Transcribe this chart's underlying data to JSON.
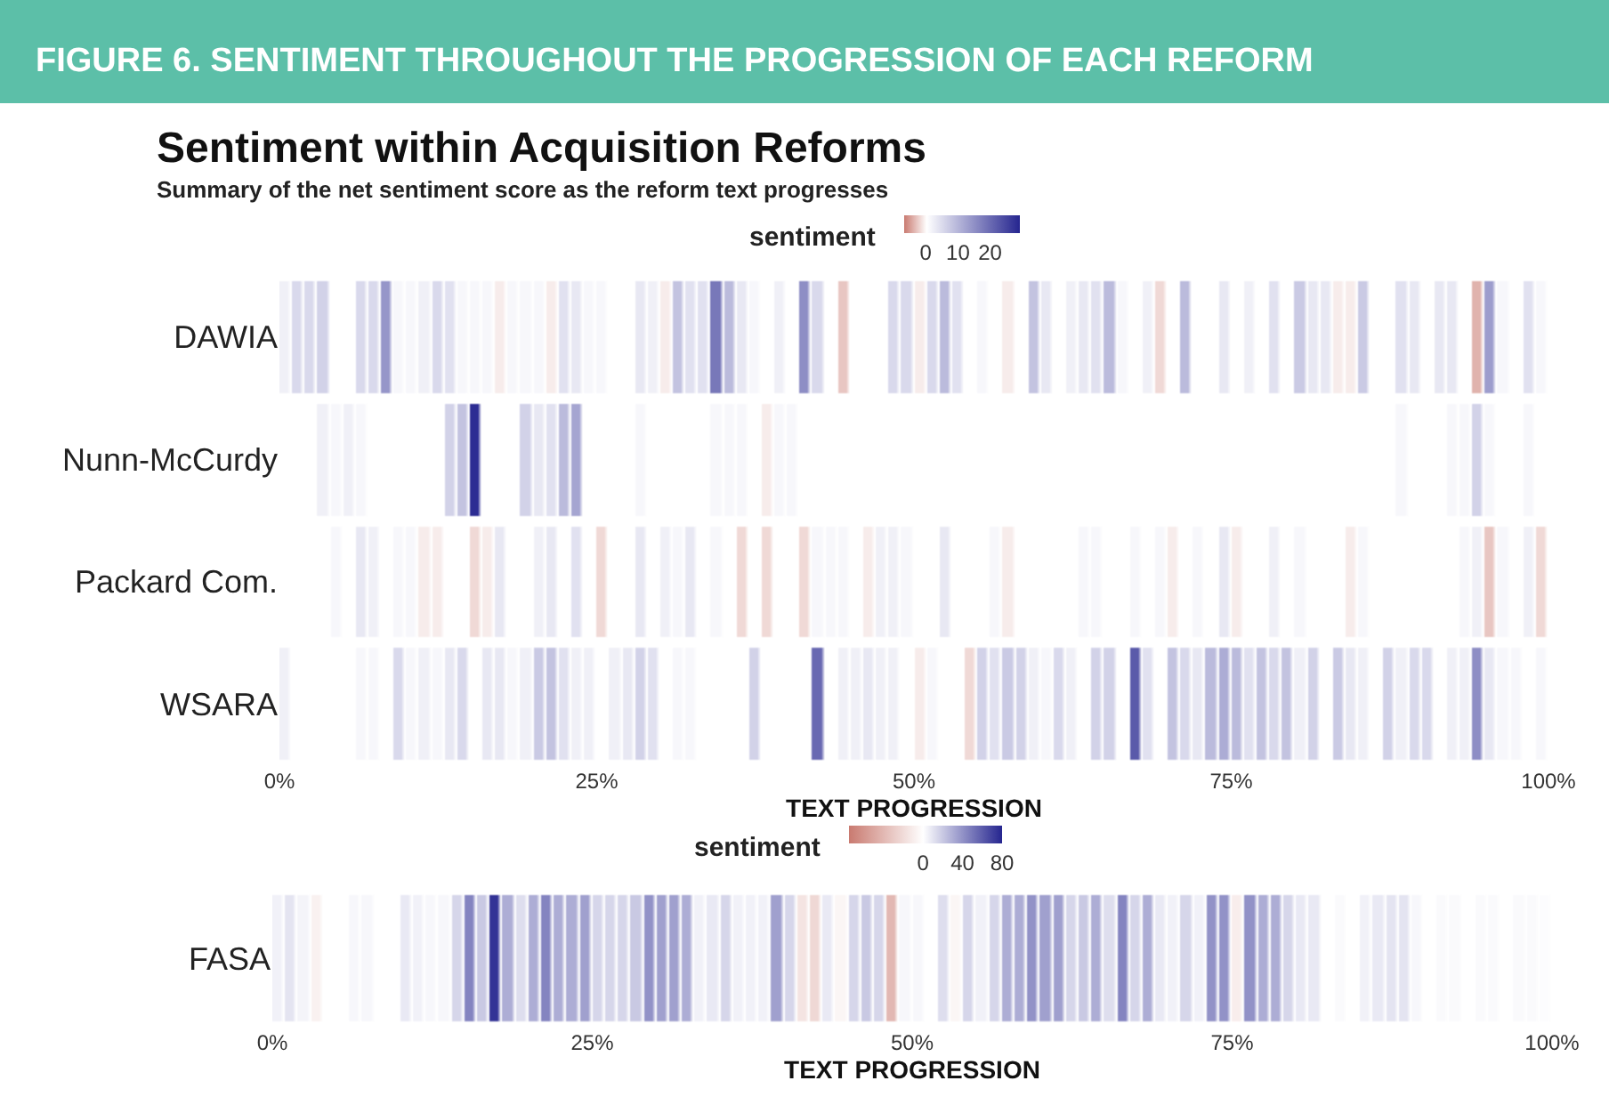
{
  "chart_data": [
    {
      "type": "heatmap",
      "title": "Sentiment within Acquisition Reforms",
      "subtitle": "Summary of the net sentiment score as the reform text progresses",
      "annotations": [
        "FIGURE 6. SENTIMENT THROUGHOUT THE PROGRESSION OF EACH REFORM"
      ],
      "xlabel": "TEXT PROGRESSION",
      "clabel": "sentiment",
      "clim": [
        -7,
        29
      ],
      "cticks": [
        0,
        10,
        20
      ],
      "xlim": [
        0,
        100
      ],
      "xticks": [
        {
          "value": 0,
          "label": "0%"
        },
        {
          "value": 25,
          "label": "25%"
        },
        {
          "value": 50,
          "label": "50%"
        },
        {
          "value": 75,
          "label": "75%"
        },
        {
          "value": 100,
          "label": "100%"
        }
      ],
      "x": [
        0.5,
        1.5,
        2.5,
        3.5,
        4.5,
        5.5,
        6.5,
        7.5,
        8.5,
        9.5,
        10.5,
        11.5,
        12.5,
        13.5,
        14.5,
        15.5,
        16.5,
        17.5,
        18.5,
        19.5,
        20.5,
        21.5,
        22.5,
        23.5,
        24.5,
        25.5,
        26.5,
        27.5,
        28.5,
        29.5,
        30.5,
        31.5,
        32.5,
        33.5,
        34.5,
        35.5,
        36.5,
        37.5,
        38.5,
        39.5,
        40.5,
        41.5,
        42.5,
        43.5,
        44.5,
        45.5,
        46.5,
        47.5,
        48.5,
        49.5,
        50.5,
        51.5,
        52.5,
        53.5,
        54.5,
        55.5,
        56.5,
        57.5,
        58.5,
        59.5,
        60.5,
        61.5,
        62.5,
        63.5,
        64.5,
        65.5,
        66.5,
        67.5,
        68.5,
        69.5,
        70.5,
        71.5,
        72.5,
        73.5,
        74.5,
        75.5,
        76.5,
        77.5,
        78.5,
        79.5,
        80.5,
        81.5,
        82.5,
        83.5,
        84.5,
        85.5,
        86.5,
        87.5,
        88.5,
        89.5,
        90.5,
        91.5,
        92.5,
        93.5,
        94.5,
        95.5,
        96.5,
        97.5,
        98.5,
        99.5
      ],
      "y_categories": [
        "DAWIA",
        "Nunn-McCurdy",
        "Packard Com.",
        "WSARA"
      ],
      "cells": [
        [
          2,
          5,
          5,
          6,
          null,
          null,
          5,
          5,
          14,
          1,
          1,
          2,
          5,
          4,
          1,
          1,
          1,
          -1,
          1,
          1,
          1,
          -1,
          4,
          3,
          1,
          1,
          null,
          null,
          3,
          2,
          -1,
          8,
          4,
          4,
          18,
          9,
          3,
          1,
          null,
          2,
          null,
          15,
          5,
          null,
          -3,
          null,
          null,
          null,
          5,
          5,
          -1,
          5,
          9,
          4,
          null,
          1,
          null,
          -1,
          null,
          8,
          3,
          null,
          2,
          3,
          4,
          9,
          1,
          null,
          2,
          -2,
          null,
          9,
          null,
          null,
          3,
          null,
          2,
          null,
          4,
          null,
          7,
          3,
          3,
          -1,
          -1,
          7,
          null,
          null,
          4,
          3,
          null,
          3,
          3,
          null,
          -4,
          13,
          1,
          null,
          4,
          1
        ],
        [
          null,
          null,
          null,
          2,
          1,
          2,
          1,
          null,
          null,
          null,
          null,
          0,
          null,
          6,
          8,
          28,
          null,
          null,
          null,
          6,
          3,
          4,
          9,
          12,
          null,
          null,
          null,
          null,
          1,
          null,
          null,
          null,
          null,
          null,
          1,
          1,
          1,
          null,
          -1,
          1,
          1,
          null,
          null,
          null,
          null,
          null,
          null,
          null,
          null,
          null,
          null,
          null,
          null,
          null,
          null,
          null,
          null,
          null,
          null,
          null,
          null,
          null,
          null,
          null,
          null,
          null,
          null,
          null,
          null,
          null,
          null,
          null,
          null,
          null,
          null,
          null,
          null,
          null,
          null,
          null,
          null,
          null,
          null,
          null,
          null,
          null,
          null,
          null,
          1,
          null,
          null,
          null,
          1,
          1,
          6,
          1,
          null,
          null,
          1,
          null
        ],
        [
          null,
          null,
          null,
          null,
          1,
          null,
          3,
          2,
          null,
          1,
          1,
          -1,
          -1,
          null,
          null,
          -2,
          -1,
          3,
          null,
          null,
          2,
          3,
          null,
          4,
          null,
          -2,
          null,
          null,
          3,
          null,
          2,
          1,
          3,
          null,
          1,
          null,
          -2,
          null,
          -2,
          null,
          null,
          -2,
          1,
          1,
          1,
          null,
          -1,
          2,
          2,
          1,
          null,
          null,
          3,
          null,
          null,
          null,
          1,
          -1,
          null,
          null,
          null,
          null,
          null,
          1,
          1,
          null,
          null,
          1,
          null,
          1,
          -1,
          null,
          1,
          null,
          3,
          -1,
          null,
          null,
          2,
          null,
          1,
          null,
          null,
          null,
          -1,
          1,
          null,
          null,
          null,
          null,
          null,
          null,
          null,
          1,
          2,
          -3,
          1,
          null,
          2,
          -2
        ],
        [
          2,
          null,
          null,
          null,
          null,
          null,
          1,
          1,
          null,
          5,
          1,
          2,
          1,
          3,
          5,
          null,
          3,
          3,
          1,
          2,
          7,
          8,
          4,
          2,
          2,
          null,
          2,
          3,
          6,
          4,
          null,
          1,
          1,
          null,
          null,
          null,
          null,
          6,
          null,
          null,
          null,
          null,
          20,
          null,
          2,
          2,
          3,
          2,
          2,
          null,
          -1,
          1,
          null,
          null,
          -2,
          6,
          4,
          7,
          6,
          2,
          1,
          5,
          2,
          null,
          6,
          6,
          null,
          22,
          4,
          null,
          8,
          5,
          3,
          9,
          11,
          9,
          4,
          8,
          5,
          8,
          2,
          6,
          null,
          7,
          3,
          2,
          null,
          6,
          2,
          5,
          5,
          null,
          2,
          2,
          15,
          3,
          1,
          1,
          null,
          1
        ]
      ]
    },
    {
      "type": "heatmap",
      "xlabel": "TEXT PROGRESSION",
      "clabel": "sentiment",
      "clim": [
        -75,
        80
      ],
      "cticks": [
        0,
        40,
        80
      ],
      "xlim": [
        0,
        100
      ],
      "xticks": [
        {
          "value": 0,
          "label": "0%"
        },
        {
          "value": 25,
          "label": "25%"
        },
        {
          "value": 50,
          "label": "50%"
        },
        {
          "value": 75,
          "label": "75%"
        },
        {
          "value": 100,
          "label": "100%"
        }
      ],
      "x": [
        0.5,
        1.5,
        2.5,
        3.5,
        4.5,
        5.5,
        6.5,
        7.5,
        8.5,
        9.5,
        10.5,
        11.5,
        12.5,
        13.5,
        14.5,
        15.5,
        16.5,
        17.5,
        18.5,
        19.5,
        20.5,
        21.5,
        22.5,
        23.5,
        24.5,
        25.5,
        26.5,
        27.5,
        28.5,
        29.5,
        30.5,
        31.5,
        32.5,
        33.5,
        34.5,
        35.5,
        36.5,
        37.5,
        38.5,
        39.5,
        40.5,
        41.5,
        42.5,
        43.5,
        44.5,
        45.5,
        46.5,
        47.5,
        48.5,
        49.5,
        50.5,
        51.5,
        52.5,
        53.5,
        54.5,
        55.5,
        56.5,
        57.5,
        58.5,
        59.5,
        60.5,
        61.5,
        62.5,
        63.5,
        64.5,
        65.5,
        66.5,
        67.5,
        68.5,
        69.5,
        70.5,
        71.5,
        72.5,
        73.5,
        74.5,
        75.5,
        76.5,
        77.5,
        78.5,
        79.5,
        80.5,
        81.5,
        82.5,
        83.5,
        84.5,
        85.5,
        86.5,
        87.5,
        88.5,
        89.5,
        90.5,
        91.5,
        92.5,
        93.5,
        94.5,
        95.5,
        96.5,
        97.5,
        98.5,
        99.5
      ],
      "y_categories": [
        "FASA"
      ],
      "cells": [
        [
          5,
          10,
          4,
          -8,
          null,
          null,
          3,
          3,
          null,
          null,
          8,
          5,
          3,
          3,
          15,
          45,
          20,
          75,
          30,
          12,
          30,
          45,
          30,
          30,
          35,
          15,
          15,
          15,
          20,
          40,
          35,
          35,
          30,
          5,
          8,
          15,
          5,
          5,
          5,
          35,
          15,
          -15,
          -22,
          8,
          -5,
          15,
          20,
          15,
          -40,
          3,
          3,
          null,
          12,
          -5,
          15,
          5,
          15,
          30,
          30,
          40,
          35,
          35,
          15,
          20,
          30,
          12,
          45,
          15,
          30,
          8,
          5,
          15,
          5,
          40,
          40,
          -10,
          40,
          30,
          30,
          15,
          8,
          8,
          null,
          2,
          null,
          5,
          8,
          10,
          10,
          3,
          null,
          2,
          2,
          null,
          2,
          2,
          null,
          2,
          2,
          1
        ]
      ]
    }
  ]
}
